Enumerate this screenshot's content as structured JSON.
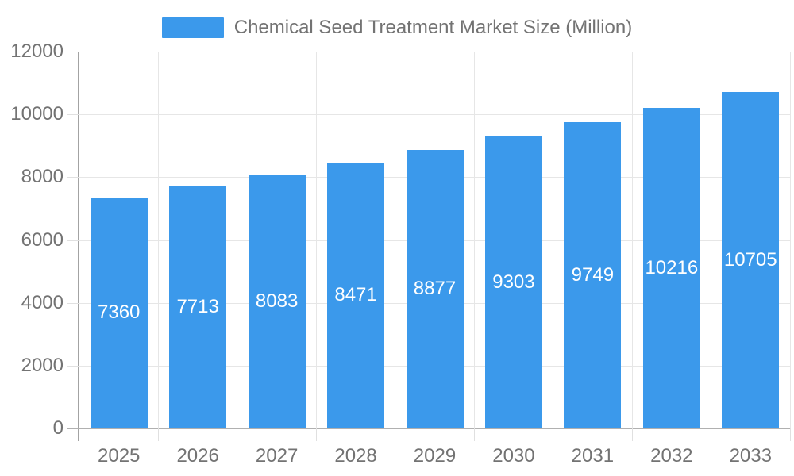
{
  "legend": {
    "label": "Chemical Seed Treatment Market Size (Million)",
    "swatch_color": "#3B99EB"
  },
  "chart_data": {
    "type": "bar",
    "title": "Chemical Seed Treatment Market Size (Million)",
    "categories": [
      "2025",
      "2026",
      "2027",
      "2028",
      "2029",
      "2030",
      "2031",
      "2032",
      "2033"
    ],
    "values": [
      7360,
      7713,
      8083,
      8471,
      8877,
      9303,
      9749,
      10216,
      10705
    ],
    "series": [
      {
        "name": "Chemical Seed Treatment Market Size (Million)",
        "values": [
          7360,
          7713,
          8083,
          8471,
          8877,
          9303,
          9749,
          10216,
          10705
        ]
      }
    ],
    "xlabel": "",
    "ylabel": "",
    "ylim": [
      0,
      12000
    ],
    "y_ticks": [
      0,
      2000,
      4000,
      6000,
      8000,
      10000,
      12000
    ],
    "grid": true,
    "legend_position": "top",
    "value_labels": "inside-center",
    "colors": {
      "bar": "#3B99EB",
      "value_label": "#FFFFFF",
      "tick_text": "#737373",
      "legend_text": "#737373",
      "gridline": "#E6E6E6",
      "tick_line": "#E0E0E0",
      "axis_line": "#A9A9A9"
    }
  }
}
